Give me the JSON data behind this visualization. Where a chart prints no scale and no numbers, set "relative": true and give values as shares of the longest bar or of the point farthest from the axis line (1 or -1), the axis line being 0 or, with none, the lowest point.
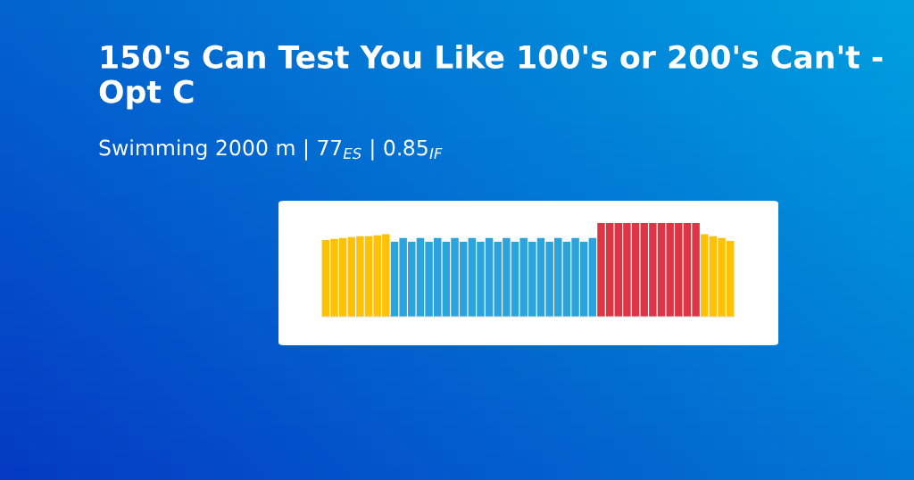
{
  "chart_data": {
    "type": "bar",
    "title": "150's Can Test You Like 100's or 200's Can't - Opt C",
    "subtitle": "Swimming 2000 m | 77$_{ES}$ | 0.85$_{IF}$",
    "relative": true,
    "categories": [
      null,
      null,
      null,
      null,
      null,
      null,
      null,
      null,
      null,
      null,
      null,
      null,
      null,
      null,
      null,
      null,
      null,
      null,
      null,
      null,
      null,
      null,
      null,
      null,
      null,
      null,
      null,
      null,
      null,
      null,
      null,
      null,
      null,
      null,
      null,
      null,
      null,
      null,
      null,
      null,
      null,
      null,
      null,
      null,
      null,
      null,
      null,
      null
    ],
    "values": [
      0.82,
      0.83,
      0.84,
      0.85,
      0.86,
      0.86,
      0.87,
      0.88,
      0.8,
      0.84,
      0.8,
      0.84,
      0.8,
      0.84,
      0.8,
      0.84,
      0.8,
      0.84,
      0.8,
      0.84,
      0.8,
      0.84,
      0.8,
      0.84,
      0.8,
      0.84,
      0.8,
      0.84,
      0.8,
      0.84,
      0.8,
      0.84,
      1,
      1,
      1,
      1,
      1,
      1,
      1,
      1,
      1,
      1,
      1,
      1,
      0.88,
      0.86,
      0.84,
      0.81
    ],
    "colors": [
      "#ffc107",
      "#ffc107",
      "#ffc107",
      "#ffc107",
      "#ffc107",
      "#ffc107",
      "#ffc107",
      "#ffc107",
      "#2ba3dc",
      "#2ba3dc",
      "#2ba3dc",
      "#2ba3dc",
      "#2ba3dc",
      "#2ba3dc",
      "#2ba3dc",
      "#2ba3dc",
      "#2ba3dc",
      "#2ba3dc",
      "#2ba3dc",
      "#2ba3dc",
      "#2ba3dc",
      "#2ba3dc",
      "#2ba3dc",
      "#2ba3dc",
      "#2ba3dc",
      "#2ba3dc",
      "#2ba3dc",
      "#2ba3dc",
      "#2ba3dc",
      "#2ba3dc",
      "#2ba3dc",
      "#2ba3dc",
      "#dc3545",
      "#dc3545",
      "#dc3545",
      "#dc3545",
      "#dc3545",
      "#dc3545",
      "#dc3545",
      "#dc3545",
      "#dc3545",
      "#dc3545",
      "#dc3545",
      "#dc3545",
      "#ffc107",
      "#ffc107",
      "#ffc107",
      "#ffc107"
    ]
  }
}
